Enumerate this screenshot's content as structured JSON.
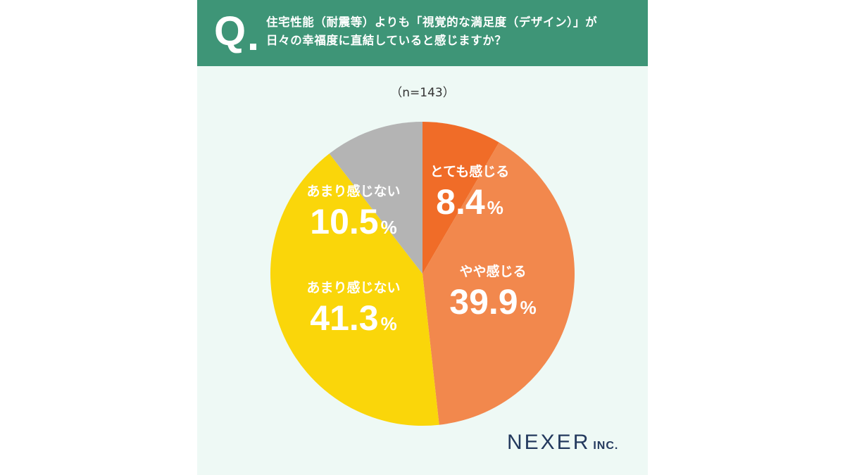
{
  "question": {
    "mark": "Q",
    "line1": "住宅性能（耐震等）よりも「視覚的な満足度（デザイン）」が",
    "line2": "日々の幸福度に直結していると感じますか？"
  },
  "sample_size": "（n=143）",
  "brand": {
    "name": "NEXER",
    "suffix": "INC."
  },
  "colors": {
    "header": "#3e9577",
    "background": "#eef9f5",
    "slice_1": "#f06c28",
    "slice_2": "#f2884d",
    "slice_3": "#fad60a",
    "slice_4": "#b4b4b4"
  },
  "chart_data": {
    "type": "pie",
    "title": "",
    "start_angle": "12 o'clock",
    "direction": "clockwise",
    "slices": [
      {
        "label": "とても感じる",
        "value": 8.4,
        "value_text": "8.4",
        "unit": "%",
        "color": "#f06c28"
      },
      {
        "label": "やや感じる",
        "value": 39.9,
        "value_text": "39.9",
        "unit": "%",
        "color": "#f2884d"
      },
      {
        "label": "あまり感じない",
        "value": 41.3,
        "value_text": "41.3",
        "unit": "%",
        "color": "#fad60a"
      },
      {
        "label": "あまり感じない",
        "value": 10.5,
        "value_text": "10.5",
        "unit": "%",
        "color": "#b4b4b4"
      }
    ]
  }
}
